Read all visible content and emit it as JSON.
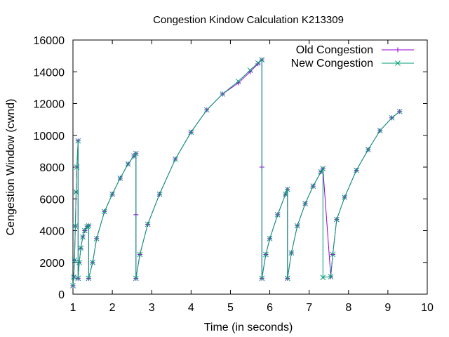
{
  "chart_data": {
    "type": "line",
    "title": "Congestion Kindow Calculation K213309",
    "xlabel": "Time (in seconds)",
    "ylabel": "Cengestion Window (cwnd)",
    "xlim": [
      1,
      10
    ],
    "ylim": [
      0,
      16000
    ],
    "x_ticks": [
      "1",
      "2",
      "3",
      "4",
      "5",
      "6",
      "7",
      "8",
      "9",
      "10"
    ],
    "y_ticks": [
      "0",
      "2000",
      "4000",
      "6000",
      "8000",
      "10000",
      "12000",
      "14000",
      "16000"
    ],
    "grid": false,
    "legend_position": "top-right",
    "series": [
      {
        "name": "Old Congestion",
        "color": "#9400d3",
        "marker": "plus",
        "points": [
          [
            1.0,
            536
          ],
          [
            1.02,
            1072
          ],
          [
            1.04,
            2144
          ],
          [
            1.06,
            4288
          ],
          [
            1.08,
            6432
          ],
          [
            1.1,
            8000
          ],
          [
            1.13,
            9650
          ],
          [
            1.13,
            1000
          ],
          [
            1.16,
            2000
          ],
          [
            1.2,
            2900
          ],
          [
            1.25,
            3600
          ],
          [
            1.3,
            4000
          ],
          [
            1.36,
            4250
          ],
          [
            1.4,
            4300
          ],
          [
            1.4,
            1000
          ],
          [
            1.5,
            2000
          ],
          [
            1.6,
            3500
          ],
          [
            1.8,
            5200
          ],
          [
            2.0,
            6300
          ],
          [
            2.2,
            7300
          ],
          [
            2.4,
            8200
          ],
          [
            2.55,
            8700
          ],
          [
            2.6,
            8850
          ],
          [
            2.6,
            5000
          ],
          [
            2.6,
            1000
          ],
          [
            2.7,
            2500
          ],
          [
            2.9,
            4400
          ],
          [
            3.2,
            6300
          ],
          [
            3.6,
            8500
          ],
          [
            4.0,
            10200
          ],
          [
            4.4,
            11600
          ],
          [
            4.8,
            12600
          ],
          [
            5.2,
            13300
          ],
          [
            5.5,
            14000
          ],
          [
            5.7,
            14500
          ],
          [
            5.8,
            14750
          ],
          [
            5.8,
            8000
          ],
          [
            5.8,
            1000
          ],
          [
            5.9,
            2500
          ],
          [
            6.0,
            3500
          ],
          [
            6.2,
            5000
          ],
          [
            6.4,
            6300
          ],
          [
            6.45,
            6600
          ],
          [
            6.45,
            1000
          ],
          [
            6.55,
            2600
          ],
          [
            6.7,
            4300
          ],
          [
            6.9,
            5700
          ],
          [
            7.1,
            6800
          ],
          [
            7.3,
            7700
          ],
          [
            7.35,
            7900
          ],
          [
            7.55,
            1100
          ],
          [
            7.6,
            2500
          ],
          [
            7.7,
            4700
          ],
          [
            7.9,
            6100
          ],
          [
            8.2,
            7800
          ],
          [
            8.5,
            9100
          ],
          [
            8.8,
            10300
          ],
          [
            9.1,
            11100
          ],
          [
            9.3,
            11500
          ]
        ]
      },
      {
        "name": "New Congestion",
        "color": "#009e73",
        "marker": "cross",
        "points": [
          [
            1.0,
            536
          ],
          [
            1.02,
            1072
          ],
          [
            1.04,
            2144
          ],
          [
            1.06,
            4288
          ],
          [
            1.08,
            6432
          ],
          [
            1.1,
            8000
          ],
          [
            1.13,
            9650
          ],
          [
            1.13,
            1000
          ],
          [
            1.16,
            2000
          ],
          [
            1.2,
            2900
          ],
          [
            1.25,
            3600
          ],
          [
            1.3,
            4000
          ],
          [
            1.36,
            4250
          ],
          [
            1.4,
            4300
          ],
          [
            1.4,
            1000
          ],
          [
            1.5,
            2000
          ],
          [
            1.6,
            3500
          ],
          [
            1.8,
            5200
          ],
          [
            2.0,
            6300
          ],
          [
            2.2,
            7300
          ],
          [
            2.4,
            8200
          ],
          [
            2.55,
            8700
          ],
          [
            2.6,
            8850
          ],
          [
            2.6,
            1000
          ],
          [
            2.7,
            2500
          ],
          [
            2.9,
            4400
          ],
          [
            3.2,
            6300
          ],
          [
            3.6,
            8500
          ],
          [
            4.0,
            10200
          ],
          [
            4.4,
            11600
          ],
          [
            4.8,
            12600
          ],
          [
            5.2,
            13400
          ],
          [
            5.5,
            14100
          ],
          [
            5.7,
            14550
          ],
          [
            5.8,
            14750
          ],
          [
            5.8,
            1000
          ],
          [
            5.9,
            2500
          ],
          [
            6.0,
            3500
          ],
          [
            6.2,
            5000
          ],
          [
            6.4,
            6300
          ],
          [
            6.45,
            6600
          ],
          [
            6.45,
            1000
          ],
          [
            6.55,
            2600
          ],
          [
            6.7,
            4300
          ],
          [
            6.9,
            5700
          ],
          [
            7.1,
            6800
          ],
          [
            7.3,
            7700
          ],
          [
            7.35,
            7900
          ],
          [
            7.35,
            1050
          ],
          [
            7.55,
            1100
          ],
          [
            7.6,
            2500
          ],
          [
            7.7,
            4700
          ],
          [
            7.9,
            6100
          ],
          [
            8.2,
            7800
          ],
          [
            8.5,
            9100
          ],
          [
            8.8,
            10300
          ],
          [
            9.1,
            11100
          ],
          [
            9.3,
            11500
          ]
        ]
      }
    ]
  }
}
